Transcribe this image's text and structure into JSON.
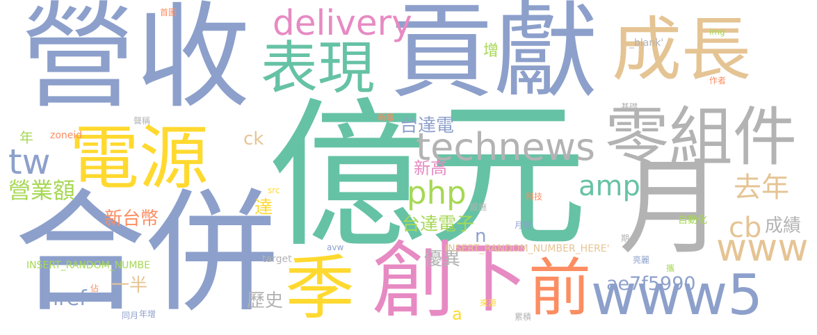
{
  "words": [
    {
      "text": "營收",
      "color": "#8da0cb"
    },
    {
      "text": "貢獻",
      "color": "#8da0cb"
    },
    {
      "text": "億元",
      "color": "#66c2a5"
    },
    {
      "text": "合併",
      "color": "#8da0cb"
    },
    {
      "text": "成長",
      "color": "#e5c494"
    },
    {
      "text": "月",
      "color": "#b3b3b3"
    },
    {
      "text": "零組件",
      "color": "#b3b3b3"
    },
    {
      "text": "電源",
      "color": "#ffd92f"
    },
    {
      "text": "表現",
      "color": "#66c2a5"
    },
    {
      "text": "technews",
      "color": "#b3b3b3"
    },
    {
      "text": "季",
      "color": "#ffd92f"
    },
    {
      "text": "創",
      "color": "#e78ac3"
    },
    {
      "text": "下",
      "color": "#e78ac3"
    },
    {
      "text": "前",
      "color": "#fc8d62"
    },
    {
      "text": "www5",
      "color": "#8da0cb"
    },
    {
      "text": "www",
      "color": "#e5c494"
    },
    {
      "text": "delivery",
      "color": "#e78ac3"
    },
    {
      "text": "tw",
      "color": "#8da0cb"
    },
    {
      "text": "營業額",
      "color": "#a6d854"
    },
    {
      "text": "php",
      "color": "#a6d854"
    },
    {
      "text": "amp",
      "color": "#66c2a5"
    },
    {
      "text": "去年",
      "color": "#e5c494"
    },
    {
      "text": "cb",
      "color": "#e5c494"
    },
    {
      "text": "成績",
      "color": "#b3b3b3"
    },
    {
      "text": "台達電",
      "color": "#8da0cb"
    },
    {
      "text": "新高",
      "color": "#e78ac3"
    },
    {
      "text": "台達電子",
      "color": "#a6d854"
    },
    {
      "text": "n",
      "color": "#8da0cb"
    },
    {
      "text": "優異",
      "color": "#b3b3b3"
    },
    {
      "text": "ae7f5990",
      "color": "#8da0cb"
    },
    {
      "text": "新台幣",
      "color": "#fc8d62"
    },
    {
      "text": "達",
      "color": "#ffd92f"
    },
    {
      "text": "ck",
      "color": "#e5c494"
    },
    {
      "text": "一半",
      "color": "#e5c494"
    },
    {
      "text": "href",
      "color": "#8da0cb"
    },
    {
      "text": "歷史",
      "color": "#b3b3b3"
    },
    {
      "text": "a",
      "color": "#ffd92f"
    },
    {
      "text": "增",
      "color": "#a6d854"
    },
    {
      "text": "年",
      "color": "#a6d854"
    },
    {
      "text": "zoneid",
      "color": "#fc8d62"
    },
    {
      "text": "首圖",
      "color": "#fc8d62"
    },
    {
      "text": "img",
      "color": "#a6d854"
    },
    {
      "text": "_blank'",
      "color": "#b3b3b3"
    },
    {
      "text": "作者",
      "color": "#fc8d62"
    },
    {
      "text": "基礎",
      "color": "#b3b3b3"
    },
    {
      "text": "聲稱",
      "color": "#b3b3b3"
    },
    {
      "text": "新報",
      "color": "#fc8d62"
    },
    {
      "text": "src",
      "color": "#ffd92f"
    },
    {
      "text": "科技",
      "color": "#fc8d62"
    },
    {
      "text": "設施",
      "color": "#b3b3b3"
    },
    {
      "text": "自動化",
      "color": "#a6d854"
    },
    {
      "text": "月增",
      "color": "#8da0cb"
    },
    {
      "text": "期",
      "color": "#b3b3b3"
    },
    {
      "text": "INSERT_RANDOM_NUMBER_HERE'",
      "color": "#e5c494"
    },
    {
      "text": "INSERT_RANDOM_NUMBE",
      "color": "#a6d854"
    },
    {
      "text": "avw",
      "color": "#8da0cb"
    },
    {
      "text": "target",
      "color": "#b3b3b3"
    },
    {
      "text": "亮麗",
      "color": "#8da0cb"
    },
    {
      "text": "攜",
      "color": "#a6d854"
    },
    {
      "text": "佔",
      "color": "#fc8d62"
    },
    {
      "text": "來源",
      "color": "#ffd92f"
    },
    {
      "text": "同月",
      "color": "#8da0cb"
    },
    {
      "text": "年增",
      "color": "#8da0cb"
    },
    {
      "text": "累積",
      "color": "#b3b3b3"
    }
  ]
}
